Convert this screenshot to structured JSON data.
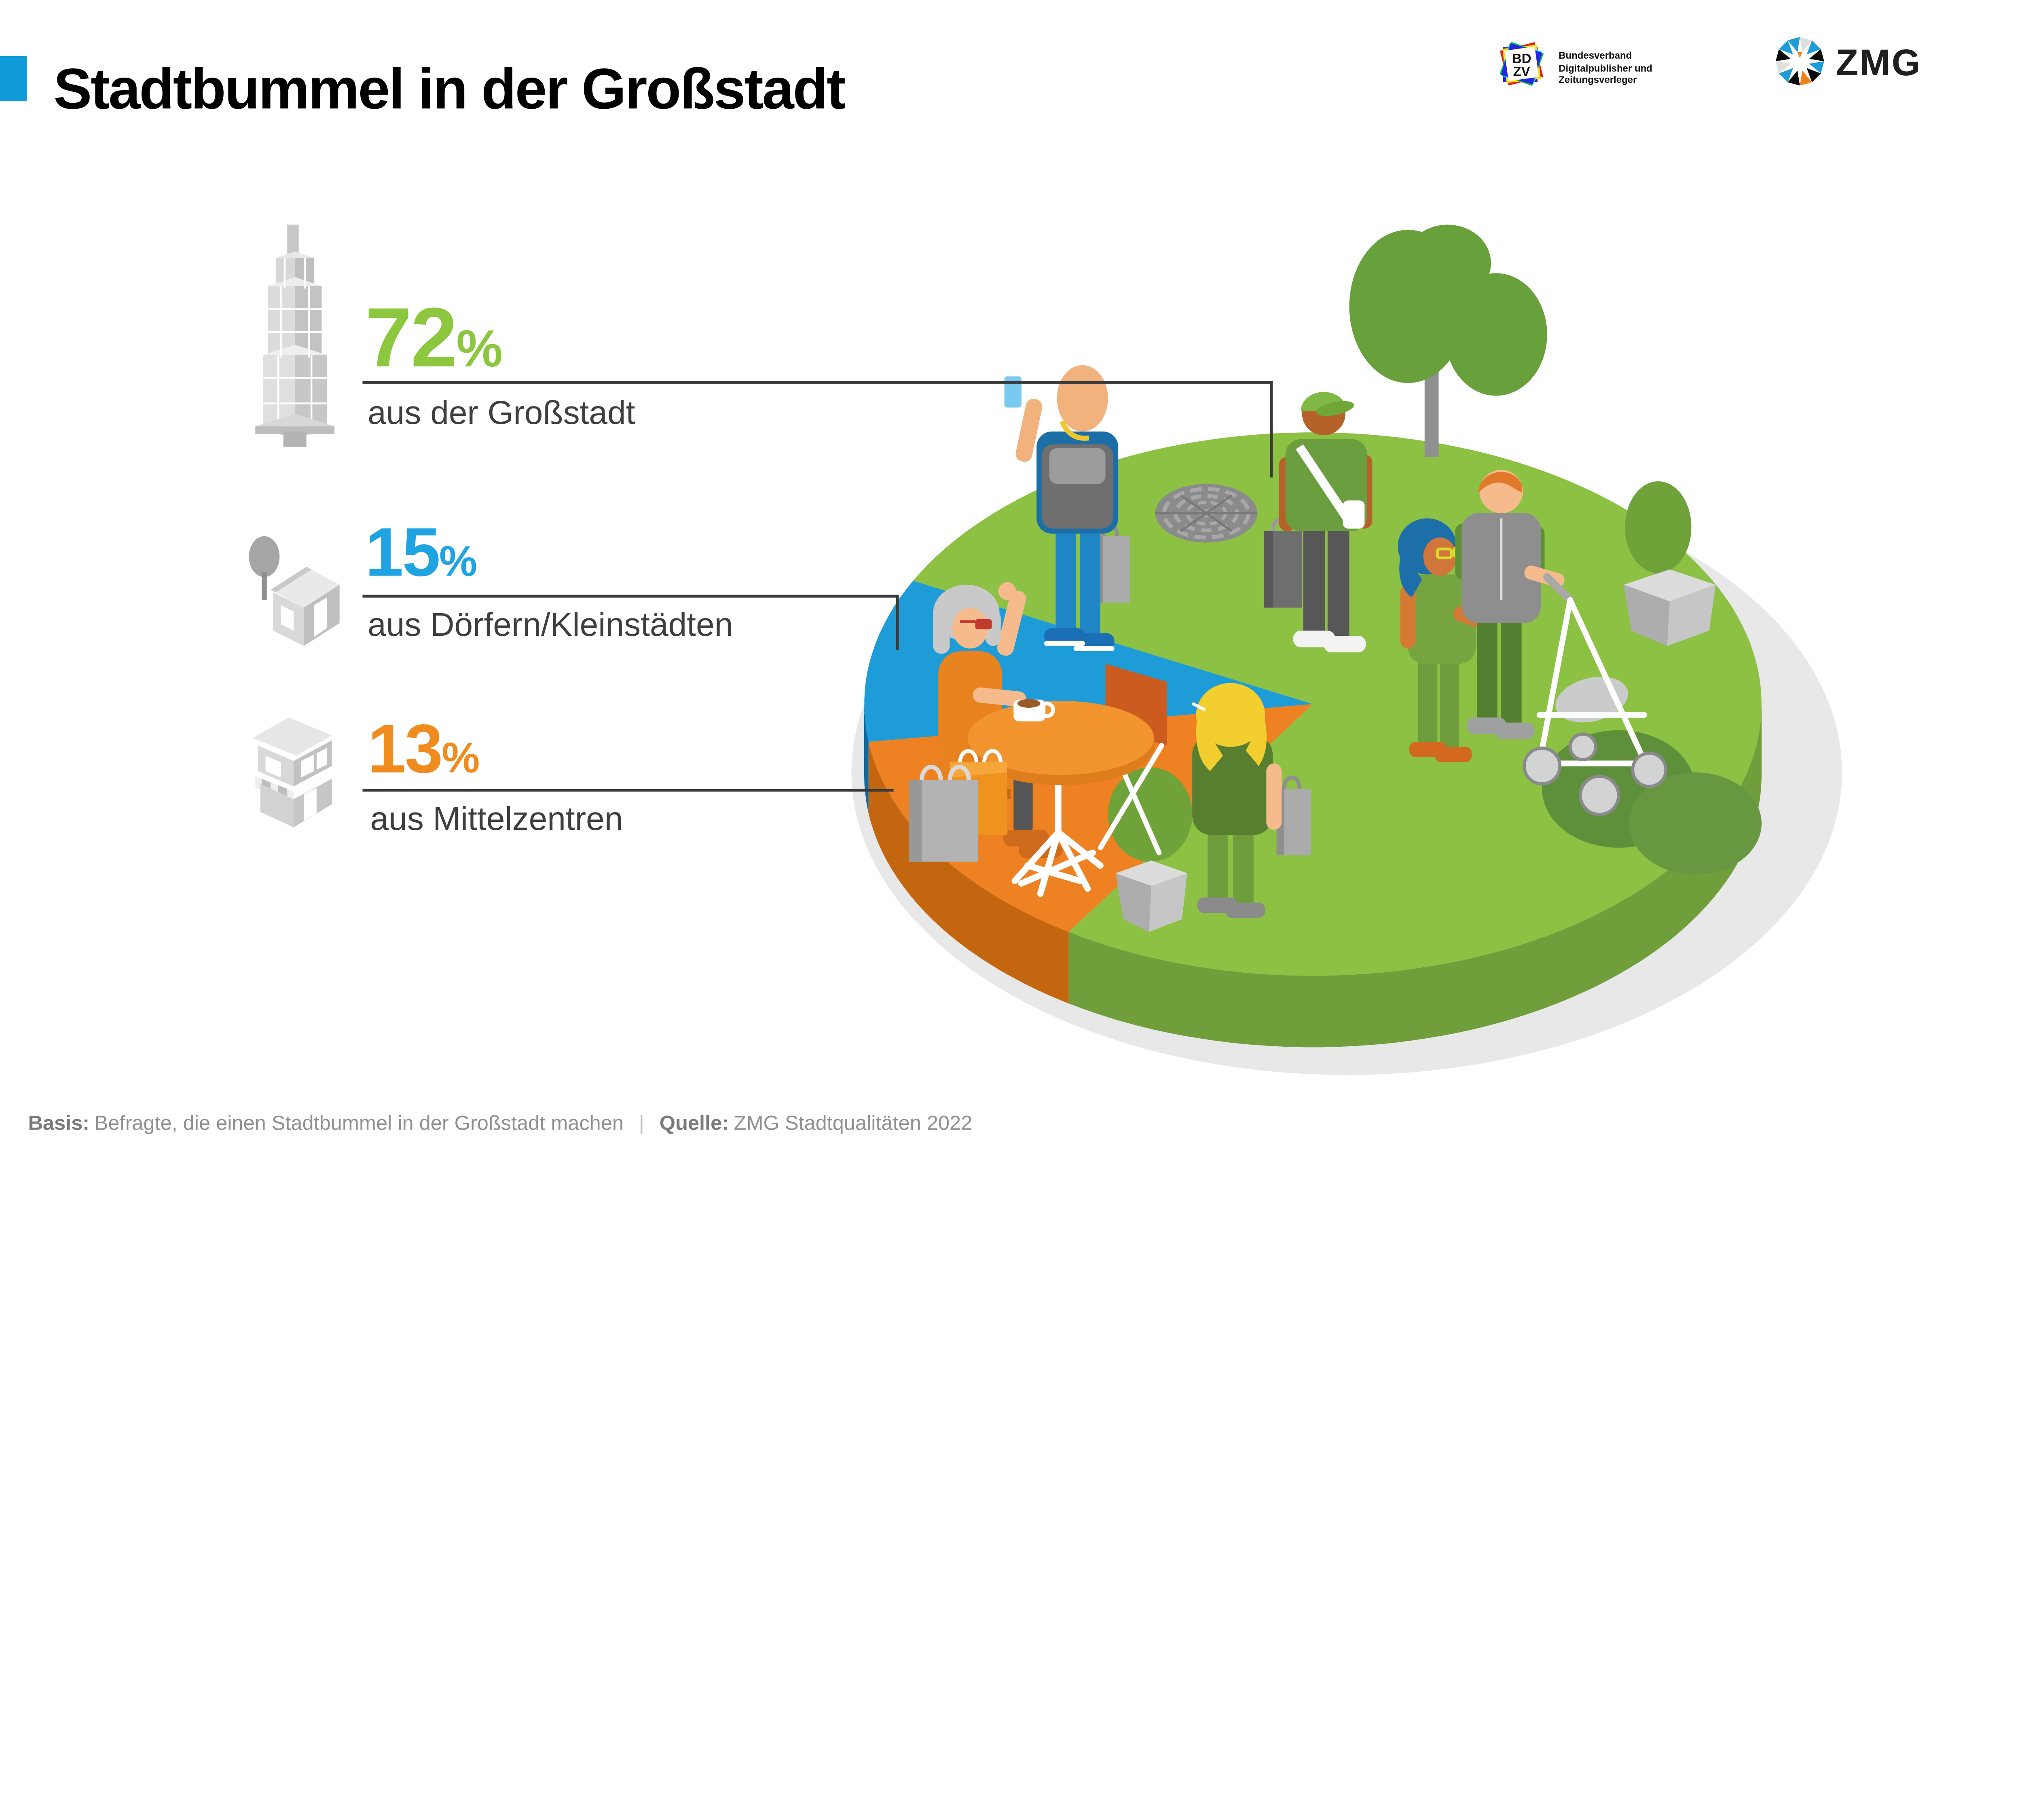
{
  "header": {
    "title": "Stadtbummel in der Großstadt",
    "accent_color": "#0E9BD8"
  },
  "logos": {
    "bdzv": {
      "letters_top": "BD",
      "letters_bottom": "ZV",
      "label_line1": "Bundesverband",
      "label_line2": "Digitalpublisher und",
      "label_line3": "Zeitungsverleger"
    },
    "zmg": {
      "wordmark": "ZMG"
    }
  },
  "stats": [
    {
      "value": "72",
      "unit": "%",
      "label": "aus der Großstadt",
      "color": "#8DC63F",
      "icon": "skyscraper-icon"
    },
    {
      "value": "15",
      "unit": "%",
      "label": "aus Dörfern/Kleinstädten",
      "color": "#1FA3E3",
      "icon": "village-house-icon"
    },
    {
      "value": "13",
      "unit": "%",
      "label": "aus Mittelzentren",
      "color": "#F08C1E",
      "icon": "town-building-icon"
    }
  ],
  "footer": {
    "basis_label": "Basis:",
    "basis_text": "Befragte, die einen Stadtbummel in der Großstadt machen",
    "separator": "|",
    "quelle_label": "Quelle:",
    "quelle_text": "ZMG Stadtqualitäten 2022"
  },
  "chart_data": {
    "type": "pie",
    "title": "Stadtbummel in der Großstadt",
    "unit": "percent",
    "categories": [
      "aus der Großstadt",
      "aus Dörfern/Kleinstädten",
      "aus Mittelzentren"
    ],
    "values": [
      72,
      15,
      13
    ],
    "segments": [
      {
        "label": "aus der Großstadt",
        "value": 72,
        "color": "#8CC144",
        "side_color": "#6F9E3A",
        "start_deg": 237,
        "end_deg": 513
      },
      {
        "label": "aus Dörfern/Kleinstädten",
        "value": 15,
        "color": "#1E9CD8",
        "side_color": "#11689E",
        "start_deg": 153,
        "end_deg": 188
      },
      {
        "label": "aus Mittelzentren",
        "value": 13,
        "color": "#EE8122",
        "side_color": "#C4660F",
        "start_deg": 188,
        "end_deg": 237
      }
    ],
    "legend_position": "left-callouts",
    "style": "isometric-disc"
  }
}
